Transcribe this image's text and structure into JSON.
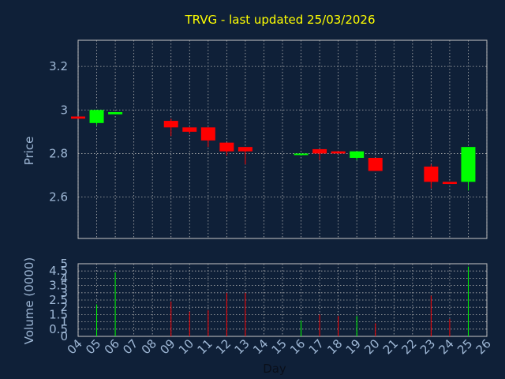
{
  "chart_data": {
    "type": "candlestick",
    "title": "TRVG - last updated 25/03/2026",
    "xlabel": "Day",
    "price": {
      "ylabel": "Price",
      "ylim": [
        2.41,
        3.32
      ],
      "yticks": [
        "3.2",
        "3",
        "2.8",
        "2.6"
      ],
      "ytick_values": [
        3.2,
        3.0,
        2.8,
        2.6
      ],
      "grid": true
    },
    "volume": {
      "ylabel": "Volume (0000)",
      "ylim": [
        0,
        5
      ],
      "yticks": [
        "5",
        "4.5",
        "4",
        "3.5",
        "3",
        "2.5",
        "2",
        "1.5",
        "1",
        "0.5",
        "0"
      ],
      "ytick_values": [
        5,
        4.5,
        4,
        3.5,
        3,
        2.5,
        2,
        1.5,
        1,
        0.5,
        0
      ]
    },
    "x_ticks": [
      "04",
      "05",
      "06",
      "07",
      "08",
      "09",
      "10",
      "11",
      "12",
      "13",
      "14",
      "15",
      "16",
      "17",
      "18",
      "19",
      "20",
      "21",
      "22",
      "23",
      "24",
      "25",
      "26"
    ],
    "candles": [
      {
        "day": "04",
        "open": 2.97,
        "high": 2.97,
        "low": 2.96,
        "close": 2.96,
        "volume": 0
      },
      {
        "day": "05",
        "open": 2.94,
        "high": 3.0,
        "low": 2.93,
        "close": 3.0,
        "volume": 2.2
      },
      {
        "day": "06",
        "open": 2.98,
        "high": 2.99,
        "low": 2.98,
        "close": 2.99,
        "volume": 4.4
      },
      {
        "day": "09",
        "open": 2.95,
        "high": 2.96,
        "low": 2.88,
        "close": 2.92,
        "volume": 2.4
      },
      {
        "day": "10",
        "open": 2.92,
        "high": 2.92,
        "low": 2.89,
        "close": 2.9,
        "volume": 1.7
      },
      {
        "day": "11",
        "open": 2.92,
        "high": 2.92,
        "low": 2.83,
        "close": 2.86,
        "volume": 1.8
      },
      {
        "day": "12",
        "open": 2.85,
        "high": 2.85,
        "low": 2.79,
        "close": 2.81,
        "volume": 3.0
      },
      {
        "day": "13",
        "open": 2.83,
        "high": 2.83,
        "low": 2.75,
        "close": 2.81,
        "volume": 3.0
      },
      {
        "day": "16",
        "open": 2.8,
        "high": 2.8,
        "low": 2.79,
        "close": 2.8,
        "volume": 1.1
      },
      {
        "day": "17",
        "open": 2.82,
        "high": 2.82,
        "low": 2.77,
        "close": 2.8,
        "volume": 1.5
      },
      {
        "day": "18",
        "open": 2.81,
        "high": 2.81,
        "low": 2.8,
        "close": 2.8,
        "volume": 1.4
      },
      {
        "day": "19",
        "open": 2.78,
        "high": 2.81,
        "low": 2.77,
        "close": 2.81,
        "volume": 1.4
      },
      {
        "day": "20",
        "open": 2.78,
        "high": 2.78,
        "low": 2.72,
        "close": 2.72,
        "volume": 0.9
      },
      {
        "day": "23",
        "open": 2.74,
        "high": 2.75,
        "low": 2.64,
        "close": 2.67,
        "volume": 2.8
      },
      {
        "day": "24",
        "open": 2.67,
        "high": 2.67,
        "low": 2.66,
        "close": 2.66,
        "volume": 1.2
      },
      {
        "day": "25",
        "open": 2.67,
        "high": 2.83,
        "low": 2.63,
        "close": 2.83,
        "volume": 4.8
      }
    ],
    "colors": {
      "background": "#0f2038",
      "plot_border": "#c8c8c8",
      "grid": "#b4b4b4",
      "up": "#00ff00",
      "down": "#ff0000",
      "title": "#ffff00",
      "text": "#9fb8d6",
      "x_text": "#0a0f1a"
    }
  }
}
